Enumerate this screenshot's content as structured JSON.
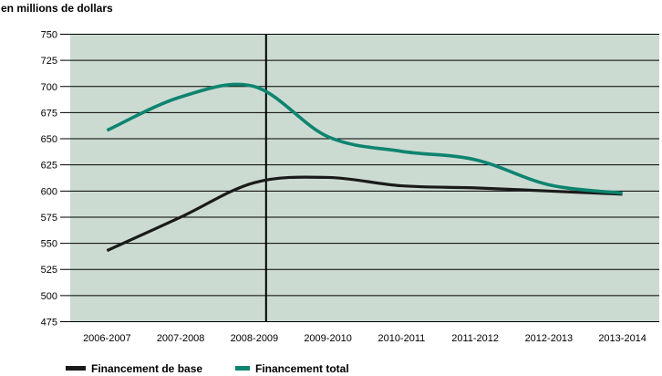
{
  "title": "en millions de dollars",
  "chart_data": {
    "type": "line",
    "title": "en millions de dollars",
    "categories": [
      "2006-2007",
      "2007-2008",
      "2008-2009",
      "2009-2010",
      "2010-2011",
      "2011-2012",
      "2012-2013",
      "2013-2014"
    ],
    "series": [
      {
        "name": "Financement de base",
        "color": "#1a1a1a",
        "stroke_width": 3.2,
        "values": [
          543,
          575,
          608,
          613,
          605,
          603,
          600,
          597
        ]
      },
      {
        "name": "Financement total",
        "color": "#0e8470",
        "stroke_width": 3.6,
        "values": [
          658,
          690,
          700,
          652,
          638,
          630,
          606,
          598
        ]
      }
    ],
    "xlabel": "",
    "ylabel": "",
    "ylim": [
      475,
      750
    ],
    "yticks": [
      475,
      500,
      525,
      550,
      575,
      600,
      625,
      650,
      675,
      700,
      725,
      750
    ],
    "grid": "horizontal-only",
    "grid_color": "#000000",
    "plot_background": "#ccdbd2",
    "reference_line": {
      "type": "vertical",
      "at_category": "2008-2009",
      "offset_fraction": 0.16,
      "color": "#000000"
    },
    "legend_position": "bottom-left",
    "legend": [
      "Financement de base",
      "Financement total"
    ],
    "smooth": true
  }
}
